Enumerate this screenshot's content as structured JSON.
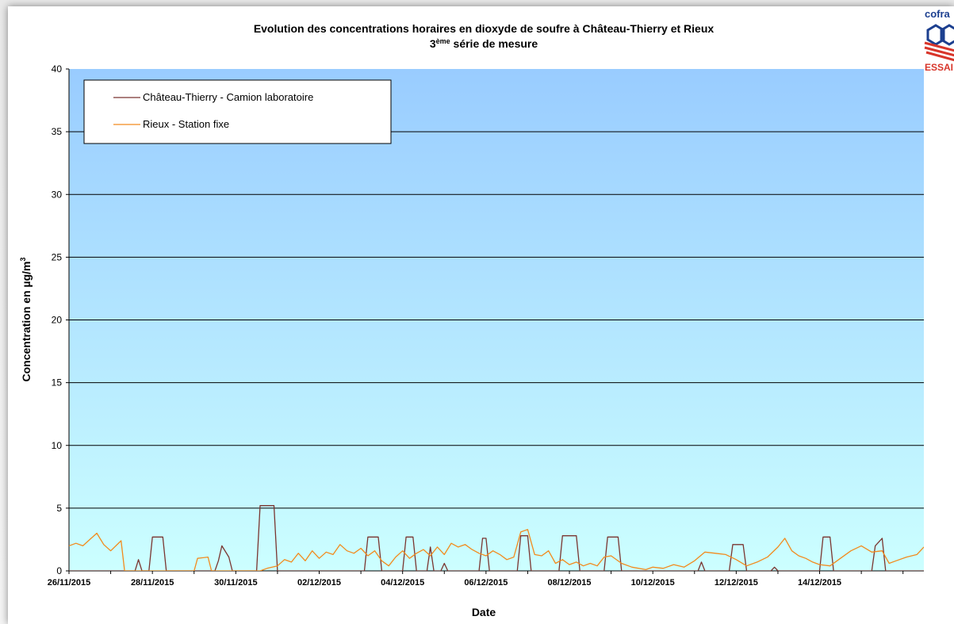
{
  "chart_data": {
    "type": "line",
    "title": "Evolution des concentrations horaires en dioxyde de soufre à Château-Thierry et Rieux",
    "subtitle_prefix": "3",
    "subtitle_sup": "ème",
    "subtitle_rest": " série de mesure",
    "xlabel": "Date",
    "ylabel": "Concentration en µg/m",
    "ylabel_sup": "3",
    "ylim": [
      0,
      40
    ],
    "yticks": [
      "0",
      "5",
      "10",
      "15",
      "20",
      "25",
      "30",
      "35",
      "40"
    ],
    "xlim": [
      "2015-11-26",
      "2015-12-16 12:00"
    ],
    "xtick_labels": [
      "26/11/2015",
      "28/11/2015",
      "30/11/2015",
      "02/12/2015",
      "04/12/2015",
      "06/12/2015",
      "08/12/2015",
      "10/12/2015",
      "12/12/2015",
      "14/12/2015"
    ],
    "grid": true,
    "legend_position": "top-left",
    "series": [
      {
        "name": "Château-Thierry - Camion laboratoire",
        "color": "#7a3530",
        "points": [
          [
            "26/11 00h",
            0
          ],
          [
            "27/11 14h",
            0
          ],
          [
            "27/11 16h",
            0.9
          ],
          [
            "27/11 18h",
            0
          ],
          [
            "27/11 22h",
            0
          ],
          [
            "28/11 00h",
            2.7
          ],
          [
            "28/11 06h",
            2.7
          ],
          [
            "28/11 08h",
            0
          ],
          [
            "29/11 12h",
            0
          ],
          [
            "29/11 14h",
            0.8
          ],
          [
            "29/11 16h",
            2.0
          ],
          [
            "29/11 20h",
            1.1
          ],
          [
            "29/11 22h",
            0
          ],
          [
            "30/11 12h",
            0
          ],
          [
            "30/11 14h",
            5.2
          ],
          [
            "30/11 22h",
            5.2
          ],
          [
            "01/12 00h",
            0
          ],
          [
            "03/12 02h",
            0
          ],
          [
            "03/12 04h",
            2.7
          ],
          [
            "03/12 10h",
            2.7
          ],
          [
            "03/12 12h",
            0
          ],
          [
            "04/12 00h",
            0
          ],
          [
            "04/12 02h",
            2.7
          ],
          [
            "04/12 06h",
            2.7
          ],
          [
            "04/12 08h",
            0
          ],
          [
            "04/12 14h",
            0
          ],
          [
            "04/12 16h",
            1.9
          ],
          [
            "04/12 18h",
            0
          ],
          [
            "04/12 22h",
            0
          ],
          [
            "05/12 00h",
            0.6
          ],
          [
            "05/12 02h",
            0
          ],
          [
            "05/12 20h",
            0
          ],
          [
            "05/12 22h",
            2.6
          ],
          [
            "06/12 00h",
            2.6
          ],
          [
            "06/12 02h",
            0
          ],
          [
            "06/12 18h",
            0
          ],
          [
            "06/12 20h",
            2.8
          ],
          [
            "07/12 00h",
            2.8
          ],
          [
            "07/12 02h",
            0
          ],
          [
            "07/12 18h",
            0
          ],
          [
            "07/12 20h",
            2.8
          ],
          [
            "08/12 04h",
            2.8
          ],
          [
            "08/12 06h",
            0
          ],
          [
            "08/12 20h",
            0
          ],
          [
            "08/12 22h",
            2.7
          ],
          [
            "09/12 04h",
            2.7
          ],
          [
            "09/12 06h",
            0
          ],
          [
            "11/12 02h",
            0
          ],
          [
            "11/12 04h",
            0.7
          ],
          [
            "11/12 06h",
            0
          ],
          [
            "11/12 20h",
            0
          ],
          [
            "11/12 22h",
            2.1
          ],
          [
            "12/12 04h",
            2.1
          ],
          [
            "12/12 06h",
            0
          ],
          [
            "12/12 20h",
            0
          ],
          [
            "12/12 22h",
            0.3
          ],
          [
            "13/12 00h",
            0
          ],
          [
            "14/12 00h",
            0
          ],
          [
            "14/12 02h",
            2.7
          ],
          [
            "14/12 06h",
            2.7
          ],
          [
            "14/12 08h",
            0
          ],
          [
            "15/12 06h",
            0
          ],
          [
            "15/12 08h",
            2.0
          ],
          [
            "15/12 12h",
            2.6
          ],
          [
            "15/12 14h",
            0
          ],
          [
            "16/12 12h",
            0
          ]
        ]
      },
      {
        "name": "Rieux - Station fixe",
        "color": "#f28a1d",
        "points": [
          [
            "26/11 00h",
            2.0
          ],
          [
            "26/11 04h",
            2.2
          ],
          [
            "26/11 08h",
            2.0
          ],
          [
            "26/11 12h",
            2.5
          ],
          [
            "26/11 16h",
            3.0
          ],
          [
            "26/11 20h",
            2.1
          ],
          [
            "27/11 00h",
            1.6
          ],
          [
            "27/11 06h",
            2.4
          ],
          [
            "27/11 08h",
            0
          ],
          [
            "29/11 00h",
            0
          ],
          [
            "29/11 02h",
            1.0
          ],
          [
            "29/11 08h",
            1.1
          ],
          [
            "29/11 10h",
            0
          ],
          [
            "30/11 14h",
            0
          ],
          [
            "30/11 18h",
            0.2
          ],
          [
            "01/12 00h",
            0.4
          ],
          [
            "01/12 04h",
            0.9
          ],
          [
            "01/12 08h",
            0.7
          ],
          [
            "01/12 12h",
            1.4
          ],
          [
            "01/12 16h",
            0.8
          ],
          [
            "01/12 20h",
            1.6
          ],
          [
            "02/12 00h",
            1.0
          ],
          [
            "02/12 04h",
            1.5
          ],
          [
            "02/12 08h",
            1.3
          ],
          [
            "02/12 12h",
            2.1
          ],
          [
            "02/12 16h",
            1.6
          ],
          [
            "02/12 20h",
            1.4
          ],
          [
            "03/12 00h",
            1.8
          ],
          [
            "03/12 04h",
            1.2
          ],
          [
            "03/12 08h",
            1.6
          ],
          [
            "03/12 12h",
            0.8
          ],
          [
            "03/12 16h",
            0.4
          ],
          [
            "03/12 20h",
            1.1
          ],
          [
            "04/12 00h",
            1.6
          ],
          [
            "04/12 04h",
            1.0
          ],
          [
            "04/12 08h",
            1.4
          ],
          [
            "04/12 12h",
            1.7
          ],
          [
            "04/12 16h",
            1.2
          ],
          [
            "04/12 20h",
            1.9
          ],
          [
            "05/12 00h",
            1.3
          ],
          [
            "05/12 04h",
            2.2
          ],
          [
            "05/12 08h",
            1.9
          ],
          [
            "05/12 12h",
            2.1
          ],
          [
            "05/12 16h",
            1.7
          ],
          [
            "05/12 20h",
            1.4
          ],
          [
            "06/12 00h",
            1.2
          ],
          [
            "06/12 04h",
            1.6
          ],
          [
            "06/12 08h",
            1.3
          ],
          [
            "06/12 12h",
            0.9
          ],
          [
            "06/12 16h",
            1.1
          ],
          [
            "06/12 20h",
            3.1
          ],
          [
            "07/12 00h",
            3.3
          ],
          [
            "07/12 04h",
            1.3
          ],
          [
            "07/12 08h",
            1.2
          ],
          [
            "07/12 12h",
            1.6
          ],
          [
            "07/12 16h",
            0.6
          ],
          [
            "07/12 20h",
            0.9
          ],
          [
            "08/12 00h",
            0.5
          ],
          [
            "08/12 04h",
            0.7
          ],
          [
            "08/12 08h",
            0.4
          ],
          [
            "08/12 12h",
            0.6
          ],
          [
            "08/12 16h",
            0.4
          ],
          [
            "08/12 20h",
            1.1
          ],
          [
            "09/12 00h",
            1.2
          ],
          [
            "09/12 06h",
            0.6
          ],
          [
            "09/12 12h",
            0.3
          ],
          [
            "09/12 20h",
            0.1
          ],
          [
            "10/12 00h",
            0.3
          ],
          [
            "10/12 06h",
            0.2
          ],
          [
            "10/12 12h",
            0.5
          ],
          [
            "10/12 18h",
            0.3
          ],
          [
            "11/12 00h",
            0.8
          ],
          [
            "11/12 06h",
            1.5
          ],
          [
            "11/12 12h",
            1.4
          ],
          [
            "11/12 18h",
            1.3
          ],
          [
            "12/12 00h",
            0.9
          ],
          [
            "12/12 06h",
            0.4
          ],
          [
            "12/12 12h",
            0.7
          ],
          [
            "12/12 18h",
            1.1
          ],
          [
            "13/12 00h",
            1.9
          ],
          [
            "13/12 04h",
            2.6
          ],
          [
            "13/12 08h",
            1.6
          ],
          [
            "13/12 12h",
            1.2
          ],
          [
            "13/12 16h",
            1.0
          ],
          [
            "13/12 20h",
            0.7
          ],
          [
            "14/12 00h",
            0.5
          ],
          [
            "14/12 06h",
            0.4
          ],
          [
            "14/12 12h",
            1.0
          ],
          [
            "14/12 18h",
            1.6
          ],
          [
            "15/12 00h",
            2.0
          ],
          [
            "15/12 06h",
            1.5
          ],
          [
            "15/12 12h",
            1.6
          ],
          [
            "15/12 16h",
            0.6
          ],
          [
            "15/12 20h",
            0.8
          ],
          [
            "16/12 02h",
            1.1
          ],
          [
            "16/12 08h",
            1.3
          ],
          [
            "16/12 12h",
            1.9
          ]
        ]
      }
    ]
  },
  "colors": {
    "plot_top": "#99ccff",
    "plot_bottom": "#ccffff",
    "gridline": "#000000"
  },
  "logo": {
    "top_text": "cofra",
    "bottom_text": "ESSAI"
  }
}
